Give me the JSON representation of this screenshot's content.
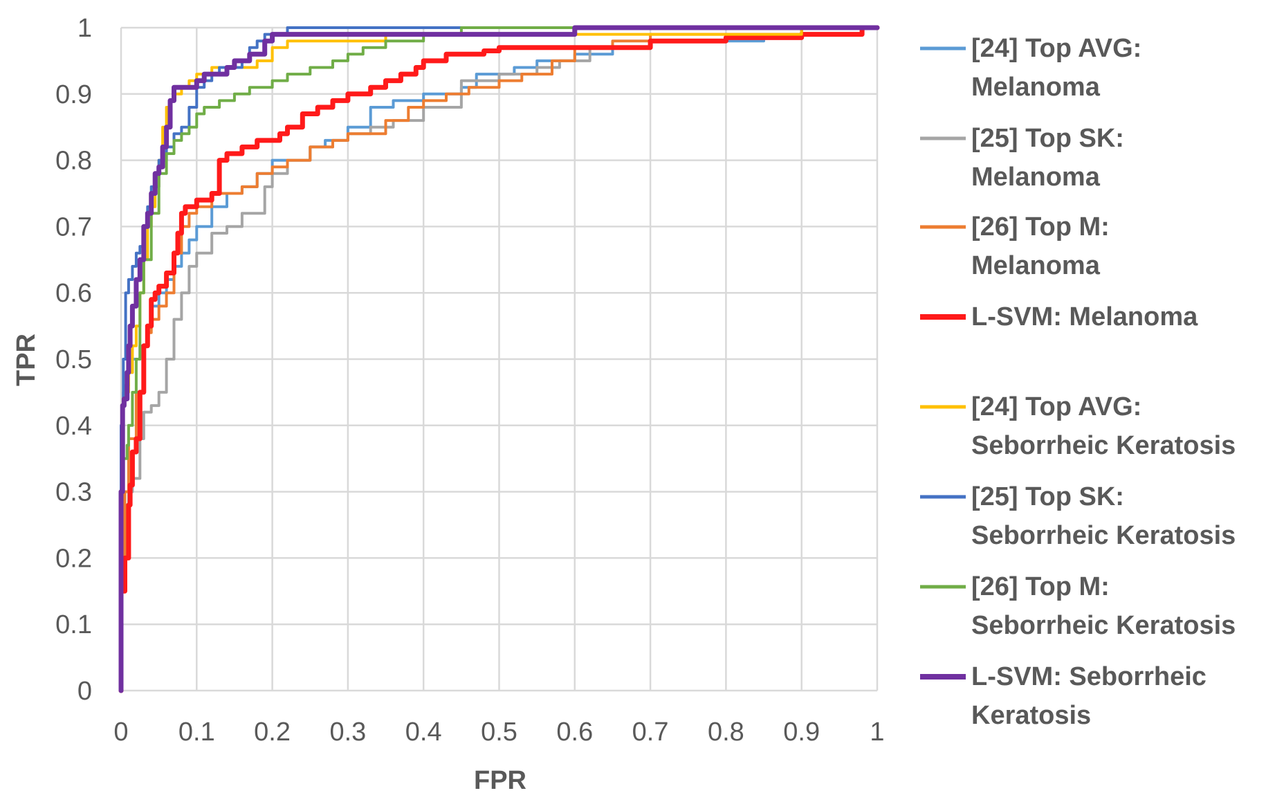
{
  "chart_data": {
    "type": "line",
    "title": "",
    "xlabel": "FPR",
    "ylabel": "TPR",
    "xlim": [
      0,
      1
    ],
    "ylim": [
      0,
      1
    ],
    "xticks": [
      "0",
      "0.1",
      "0.2",
      "0.3",
      "0.4",
      "0.5",
      "0.6",
      "0.7",
      "0.8",
      "0.9",
      "1"
    ],
    "yticks": [
      "0",
      "0.1",
      "0.2",
      "0.3",
      "0.4",
      "0.5",
      "0.6",
      "0.7",
      "0.8",
      "0.9",
      "1"
    ],
    "grid": true,
    "legend_position": "right",
    "series": [
      {
        "name": "[24] Top AVG: Melanoma",
        "legend_lines": [
          "[24] Top AVG:",
          "Melanoma"
        ],
        "color": "#5B9BD5",
        "thick": false,
        "points": [
          [
            0,
            0.05
          ],
          [
            0.003,
            0.3
          ],
          [
            0.005,
            0.45
          ],
          [
            0.01,
            0.46
          ],
          [
            0.015,
            0.48
          ],
          [
            0.025,
            0.5
          ],
          [
            0.035,
            0.52
          ],
          [
            0.04,
            0.55
          ],
          [
            0.05,
            0.58
          ],
          [
            0.06,
            0.6
          ],
          [
            0.07,
            0.62
          ],
          [
            0.08,
            0.64
          ],
          [
            0.09,
            0.66
          ],
          [
            0.1,
            0.68
          ],
          [
            0.12,
            0.7
          ],
          [
            0.14,
            0.73
          ],
          [
            0.16,
            0.75
          ],
          [
            0.18,
            0.76
          ],
          [
            0.2,
            0.78
          ],
          [
            0.25,
            0.8
          ],
          [
            0.27,
            0.82
          ],
          [
            0.3,
            0.83
          ],
          [
            0.33,
            0.85
          ],
          [
            0.36,
            0.88
          ],
          [
            0.4,
            0.89
          ],
          [
            0.45,
            0.9
          ],
          [
            0.47,
            0.91
          ],
          [
            0.48,
            0.93
          ],
          [
            0.52,
            0.93
          ],
          [
            0.55,
            0.94
          ],
          [
            0.6,
            0.95
          ],
          [
            0.65,
            0.96
          ],
          [
            0.7,
            0.97
          ],
          [
            0.75,
            0.98
          ],
          [
            0.85,
            0.98
          ],
          [
            0.9,
            0.99
          ],
          [
            1,
            1
          ]
        ]
      },
      {
        "name": "[25] Top SK: Melanoma",
        "legend_lines": [
          "[25] Top SK:",
          "Melanoma"
        ],
        "color": "#A5A5A5",
        "thick": false,
        "points": [
          [
            0,
            0.05
          ],
          [
            0.003,
            0.2
          ],
          [
            0.01,
            0.28
          ],
          [
            0.015,
            0.3
          ],
          [
            0.025,
            0.32
          ],
          [
            0.03,
            0.38
          ],
          [
            0.04,
            0.42
          ],
          [
            0.05,
            0.43
          ],
          [
            0.06,
            0.45
          ],
          [
            0.07,
            0.5
          ],
          [
            0.08,
            0.56
          ],
          [
            0.09,
            0.6
          ],
          [
            0.1,
            0.64
          ],
          [
            0.12,
            0.66
          ],
          [
            0.14,
            0.69
          ],
          [
            0.16,
            0.7
          ],
          [
            0.19,
            0.72
          ],
          [
            0.2,
            0.76
          ],
          [
            0.22,
            0.78
          ],
          [
            0.25,
            0.8
          ],
          [
            0.28,
            0.82
          ],
          [
            0.3,
            0.83
          ],
          [
            0.33,
            0.84
          ],
          [
            0.36,
            0.85
          ],
          [
            0.4,
            0.86
          ],
          [
            0.45,
            0.88
          ],
          [
            0.5,
            0.92
          ],
          [
            0.55,
            0.93
          ],
          [
            0.58,
            0.94
          ],
          [
            0.62,
            0.95
          ],
          [
            0.7,
            0.97
          ],
          [
            0.8,
            0.98
          ],
          [
            0.9,
            0.99
          ],
          [
            1,
            1
          ]
        ]
      },
      {
        "name": "[26] Top M: Melanoma",
        "legend_lines": [
          "[26] Top M:",
          "Melanoma"
        ],
        "color": "#ED7D31",
        "thick": false,
        "points": [
          [
            0,
            0.05
          ],
          [
            0.005,
            0.2
          ],
          [
            0.01,
            0.3
          ],
          [
            0.02,
            0.38
          ],
          [
            0.03,
            0.45
          ],
          [
            0.035,
            0.52
          ],
          [
            0.04,
            0.54
          ],
          [
            0.05,
            0.56
          ],
          [
            0.06,
            0.58
          ],
          [
            0.07,
            0.6
          ],
          [
            0.08,
            0.66
          ],
          [
            0.09,
            0.7
          ],
          [
            0.1,
            0.72
          ],
          [
            0.12,
            0.73
          ],
          [
            0.14,
            0.75
          ],
          [
            0.16,
            0.75
          ],
          [
            0.18,
            0.76
          ],
          [
            0.2,
            0.78
          ],
          [
            0.22,
            0.79
          ],
          [
            0.25,
            0.8
          ],
          [
            0.28,
            0.82
          ],
          [
            0.3,
            0.83
          ],
          [
            0.35,
            0.84
          ],
          [
            0.38,
            0.86
          ],
          [
            0.4,
            0.88
          ],
          [
            0.43,
            0.89
          ],
          [
            0.46,
            0.9
          ],
          [
            0.5,
            0.91
          ],
          [
            0.53,
            0.92
          ],
          [
            0.57,
            0.93
          ],
          [
            0.6,
            0.95
          ],
          [
            0.65,
            0.97
          ],
          [
            0.7,
            0.98
          ],
          [
            0.8,
            0.99
          ],
          [
            0.9,
            0.99
          ],
          [
            1,
            1
          ]
        ]
      },
      {
        "name": "L-SVM: Melanoma",
        "legend_lines": [
          "L-SVM: Melanoma"
        ],
        "color": "#FF1A1A",
        "thick": true,
        "points": [
          [
            0,
            0.0
          ],
          [
            0.005,
            0.15
          ],
          [
            0.01,
            0.2
          ],
          [
            0.012,
            0.28
          ],
          [
            0.015,
            0.31
          ],
          [
            0.02,
            0.36
          ],
          [
            0.025,
            0.38
          ],
          [
            0.03,
            0.45
          ],
          [
            0.035,
            0.52
          ],
          [
            0.04,
            0.55
          ],
          [
            0.045,
            0.59
          ],
          [
            0.05,
            0.6
          ],
          [
            0.06,
            0.61
          ],
          [
            0.07,
            0.63
          ],
          [
            0.075,
            0.66
          ],
          [
            0.08,
            0.69
          ],
          [
            0.085,
            0.72
          ],
          [
            0.1,
            0.73
          ],
          [
            0.12,
            0.74
          ],
          [
            0.13,
            0.75
          ],
          [
            0.13,
            0.78
          ],
          [
            0.14,
            0.8
          ],
          [
            0.16,
            0.81
          ],
          [
            0.18,
            0.82
          ],
          [
            0.21,
            0.83
          ],
          [
            0.22,
            0.84
          ],
          [
            0.24,
            0.85
          ],
          [
            0.26,
            0.87
          ],
          [
            0.28,
            0.88
          ],
          [
            0.3,
            0.89
          ],
          [
            0.33,
            0.9
          ],
          [
            0.35,
            0.91
          ],
          [
            0.37,
            0.92
          ],
          [
            0.39,
            0.93
          ],
          [
            0.4,
            0.94
          ],
          [
            0.43,
            0.95
          ],
          [
            0.45,
            0.96
          ],
          [
            0.48,
            0.96
          ],
          [
            0.5,
            0.965
          ],
          [
            0.6,
            0.97
          ],
          [
            0.7,
            0.97
          ],
          [
            0.71,
            0.98
          ],
          [
            0.8,
            0.98
          ],
          [
            0.9,
            0.985
          ],
          [
            0.98,
            0.99
          ],
          [
            1,
            1
          ]
        ]
      },
      {
        "name": "[24] Top AVG: Seborrheic Keratosis",
        "legend_lines": [
          "[24] Top AVG:",
          "Seborrheic Keratosis"
        ],
        "color": "#FFC000",
        "thick": false,
        "points": [
          [
            0,
            0.05
          ],
          [
            0.003,
            0.3
          ],
          [
            0.005,
            0.43
          ],
          [
            0.01,
            0.45
          ],
          [
            0.015,
            0.48
          ],
          [
            0.02,
            0.52
          ],
          [
            0.025,
            0.55
          ],
          [
            0.03,
            0.6
          ],
          [
            0.035,
            0.65
          ],
          [
            0.04,
            0.7
          ],
          [
            0.045,
            0.73
          ],
          [
            0.05,
            0.76
          ],
          [
            0.055,
            0.8
          ],
          [
            0.06,
            0.85
          ],
          [
            0.065,
            0.88
          ],
          [
            0.07,
            0.89
          ],
          [
            0.08,
            0.9
          ],
          [
            0.09,
            0.91
          ],
          [
            0.1,
            0.92
          ],
          [
            0.12,
            0.93
          ],
          [
            0.13,
            0.94
          ],
          [
            0.15,
            0.94
          ],
          [
            0.18,
            0.94
          ],
          [
            0.2,
            0.95
          ],
          [
            0.22,
            0.97
          ],
          [
            0.25,
            0.98
          ],
          [
            0.3,
            0.98
          ],
          [
            0.35,
            0.98
          ],
          [
            0.4,
            0.99
          ],
          [
            0.5,
            0.99
          ],
          [
            0.6,
            0.99
          ],
          [
            0.8,
            0.99
          ],
          [
            0.9,
            0.99
          ],
          [
            1,
            1
          ]
        ]
      },
      {
        "name": "[25] Top SK: Seborrheic Keratosis",
        "legend_lines": [
          "[25] Top SK:",
          "Seborrheic Keratosis"
        ],
        "color": "#4472C4",
        "thick": false,
        "points": [
          [
            0,
            0.05
          ],
          [
            0.003,
            0.4
          ],
          [
            0.006,
            0.5
          ],
          [
            0.01,
            0.6
          ],
          [
            0.015,
            0.62
          ],
          [
            0.02,
            0.64
          ],
          [
            0.025,
            0.66
          ],
          [
            0.03,
            0.67
          ],
          [
            0.035,
            0.7
          ],
          [
            0.04,
            0.73
          ],
          [
            0.05,
            0.76
          ],
          [
            0.06,
            0.8
          ],
          [
            0.07,
            0.82
          ],
          [
            0.08,
            0.84
          ],
          [
            0.09,
            0.85
          ],
          [
            0.1,
            0.88
          ],
          [
            0.11,
            0.91
          ],
          [
            0.12,
            0.92
          ],
          [
            0.13,
            0.93
          ],
          [
            0.14,
            0.94
          ],
          [
            0.16,
            0.94
          ],
          [
            0.17,
            0.95
          ],
          [
            0.18,
            0.97
          ],
          [
            0.19,
            0.98
          ],
          [
            0.22,
            0.99
          ],
          [
            0.25,
            1
          ],
          [
            0.4,
            1
          ],
          [
            0.6,
            1
          ],
          [
            0.8,
            1
          ],
          [
            1,
            1
          ]
        ]
      },
      {
        "name": "[26] Top M: Seborrheic Keratosis",
        "legend_lines": [
          "[26] Top M:",
          "Seborrheic Keratosis"
        ],
        "color": "#70AD47",
        "thick": false,
        "points": [
          [
            0,
            0.05
          ],
          [
            0.003,
            0.3
          ],
          [
            0.008,
            0.35
          ],
          [
            0.01,
            0.37
          ],
          [
            0.015,
            0.4
          ],
          [
            0.02,
            0.45
          ],
          [
            0.025,
            0.5
          ],
          [
            0.03,
            0.6
          ],
          [
            0.04,
            0.65
          ],
          [
            0.05,
            0.72
          ],
          [
            0.06,
            0.78
          ],
          [
            0.07,
            0.81
          ],
          [
            0.08,
            0.83
          ],
          [
            0.09,
            0.84
          ],
          [
            0.1,
            0.85
          ],
          [
            0.11,
            0.87
          ],
          [
            0.13,
            0.88
          ],
          [
            0.15,
            0.89
          ],
          [
            0.17,
            0.9
          ],
          [
            0.18,
            0.91
          ],
          [
            0.2,
            0.91
          ],
          [
            0.22,
            0.92
          ],
          [
            0.25,
            0.93
          ],
          [
            0.28,
            0.94
          ],
          [
            0.3,
            0.95
          ],
          [
            0.32,
            0.96
          ],
          [
            0.35,
            0.97
          ],
          [
            0.38,
            0.98
          ],
          [
            0.4,
            0.98
          ],
          [
            0.45,
            0.99
          ],
          [
            0.5,
            1
          ],
          [
            0.6,
            1
          ],
          [
            0.8,
            1
          ],
          [
            1,
            1
          ]
        ]
      },
      {
        "name": "L-SVM: Seborrheic Keratosis",
        "legend_lines": [
          "L-SVM: Seborrheic",
          "Keratosis"
        ],
        "color": "#7030A0",
        "thick": true,
        "points": [
          [
            0,
            0.0
          ],
          [
            0.002,
            0.3
          ],
          [
            0.004,
            0.43
          ],
          [
            0.008,
            0.44
          ],
          [
            0.01,
            0.48
          ],
          [
            0.012,
            0.52
          ],
          [
            0.015,
            0.55
          ],
          [
            0.02,
            0.58
          ],
          [
            0.025,
            0.62
          ],
          [
            0.03,
            0.65
          ],
          [
            0.035,
            0.7
          ],
          [
            0.04,
            0.72
          ],
          [
            0.045,
            0.75
          ],
          [
            0.05,
            0.78
          ],
          [
            0.055,
            0.79
          ],
          [
            0.06,
            0.82
          ],
          [
            0.065,
            0.85
          ],
          [
            0.07,
            0.89
          ],
          [
            0.08,
            0.91
          ],
          [
            0.1,
            0.91
          ],
          [
            0.11,
            0.92
          ],
          [
            0.12,
            0.93
          ],
          [
            0.14,
            0.93
          ],
          [
            0.15,
            0.94
          ],
          [
            0.17,
            0.95
          ],
          [
            0.19,
            0.96
          ],
          [
            0.2,
            0.98
          ],
          [
            0.22,
            0.99
          ],
          [
            0.3,
            0.99
          ],
          [
            0.4,
            0.99
          ],
          [
            0.5,
            0.99
          ],
          [
            0.6,
            0.99
          ],
          [
            0.72,
            1
          ],
          [
            0.8,
            1
          ],
          [
            1,
            1
          ]
        ]
      }
    ]
  }
}
